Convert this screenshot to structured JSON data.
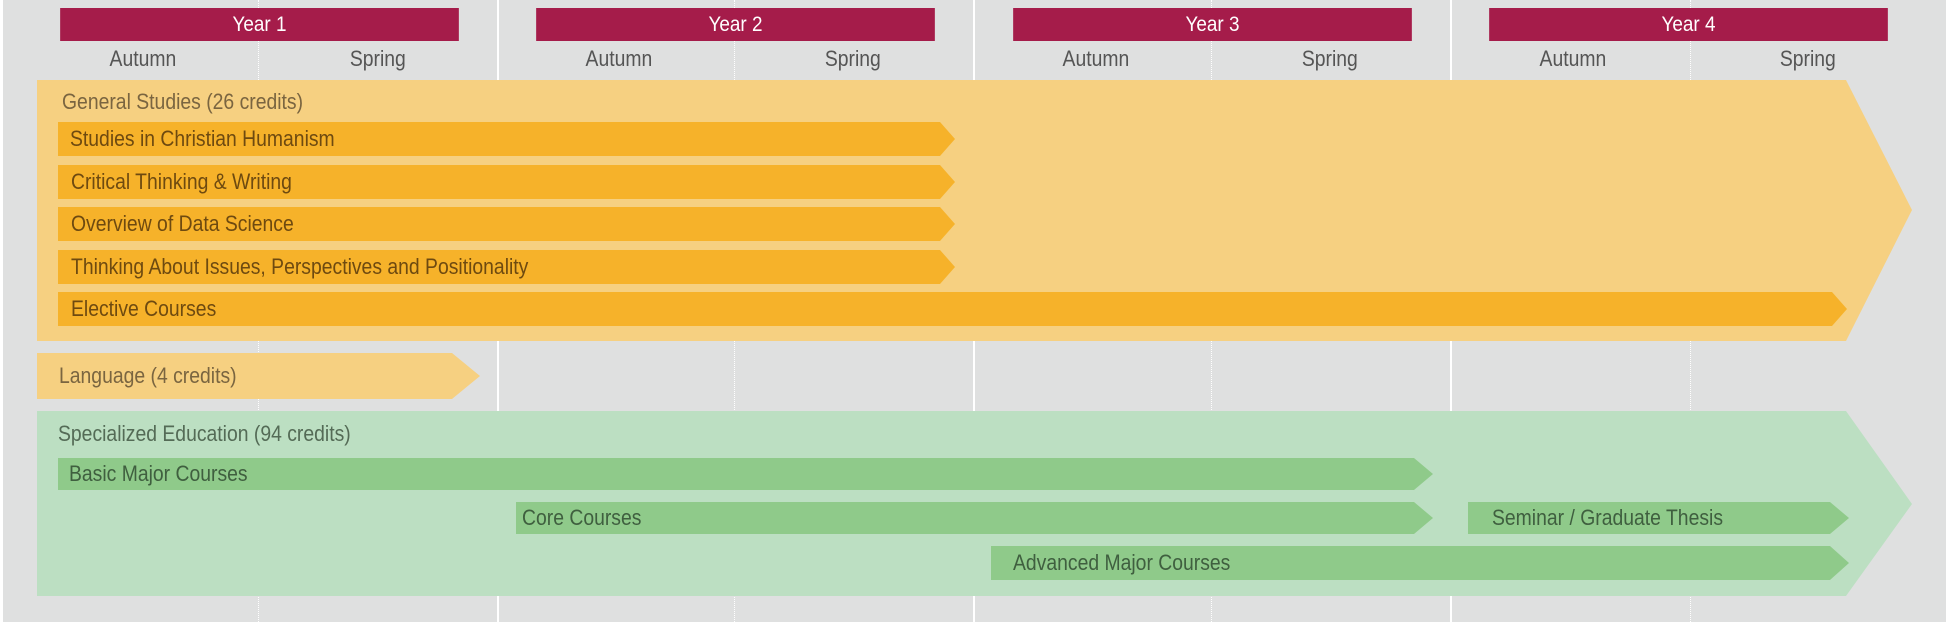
{
  "years": [
    {
      "label": "Year 1",
      "semesters": [
        "Autumn",
        "Spring"
      ]
    },
    {
      "label": "Year 2",
      "semesters": [
        "Autumn",
        "Spring"
      ]
    },
    {
      "label": "Year 3",
      "semesters": [
        "Autumn",
        "Spring"
      ]
    },
    {
      "label": "Year 4",
      "semesters": [
        "Autumn",
        "Spring"
      ]
    }
  ],
  "general_studies": {
    "title": "General Studies (26 credits)",
    "courses": [
      "Studies in Christian Humanism",
      "Critical Thinking & Writing",
      "Overview of Data Science",
      "Thinking About Issues, Perspectives and Positionality",
      "Elective Courses"
    ]
  },
  "language": {
    "title": "Language (4 credits)"
  },
  "specialized_education": {
    "title": "Specialized Education (94 credits)",
    "courses": [
      "Basic Major Courses",
      "Core Courses",
      "Seminar / Graduate Thesis",
      "Advanced Major Courses"
    ]
  },
  "colors": {
    "year_header": "#a51c4a",
    "general_light": "#f6d081",
    "general_bar": "#f6b22a",
    "specialized_light": "#bcdfc2",
    "specialized_bar": "#8fca8a",
    "background": "#dfe0e0"
  }
}
